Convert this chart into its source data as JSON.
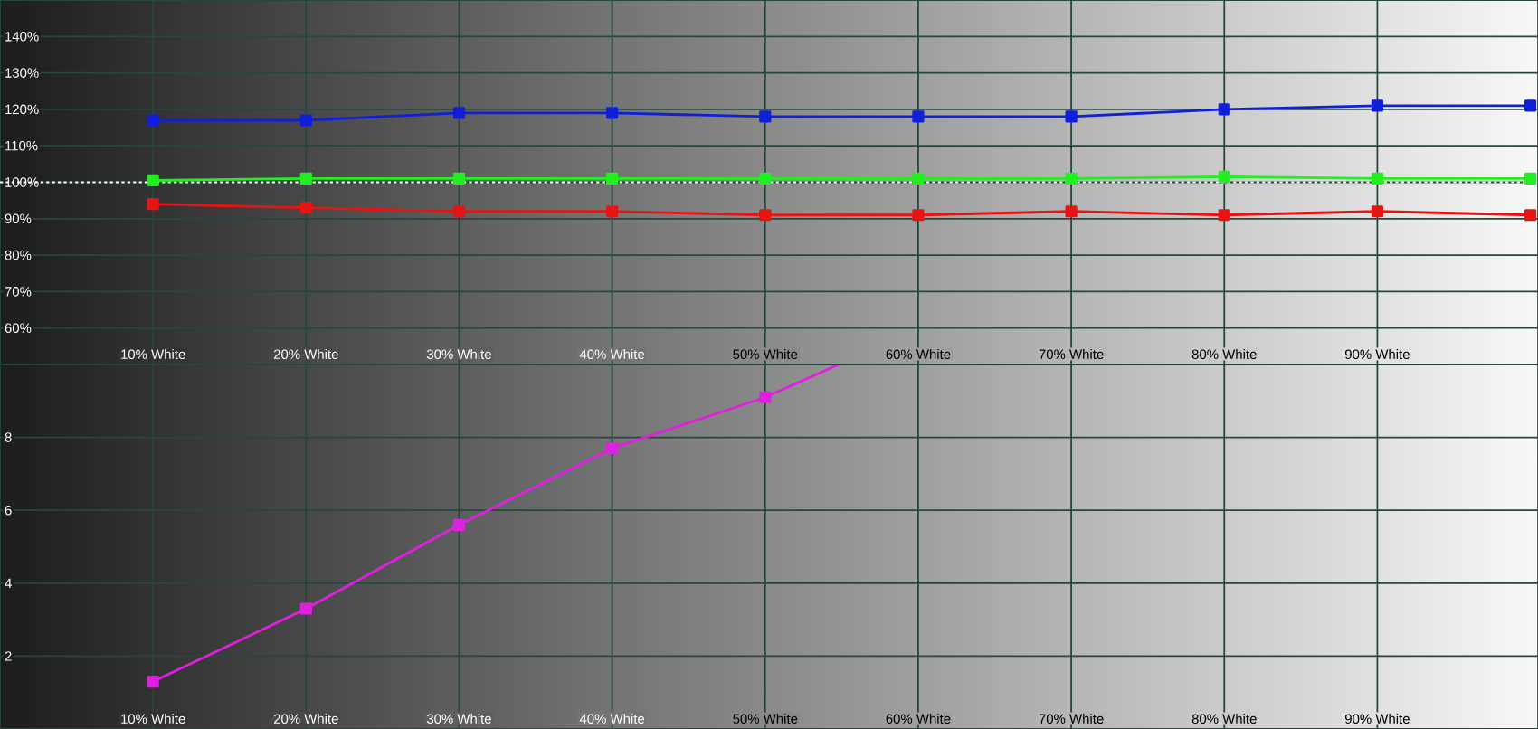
{
  "chart_data": [
    {
      "type": "line",
      "x": [
        10,
        20,
        30,
        40,
        50,
        60,
        70,
        80,
        90,
        100
      ],
      "xlim": [
        0,
        100.5
      ],
      "xticks": [
        {
          "value": 10,
          "label": "10% White"
        },
        {
          "value": 20,
          "label": "20% White"
        },
        {
          "value": 30,
          "label": "30% White"
        },
        {
          "value": 40,
          "label": "40% White"
        },
        {
          "value": 50,
          "label": "50% White"
        },
        {
          "value": 60,
          "label": "60% White"
        },
        {
          "value": 70,
          "label": "70% White"
        },
        {
          "value": 80,
          "label": "80% White"
        },
        {
          "value": 90,
          "label": "90% White"
        }
      ],
      "ylim": [
        50,
        150
      ],
      "yticks": [
        {
          "value": 60,
          "label": "60%"
        },
        {
          "value": 70,
          "label": "70%"
        },
        {
          "value": 80,
          "label": "80%"
        },
        {
          "value": 90,
          "label": "90%"
        },
        {
          "value": 100,
          "label": "100%"
        },
        {
          "value": 110,
          "label": "110%"
        },
        {
          "value": 120,
          "label": "120%"
        },
        {
          "value": 130,
          "label": "130%"
        },
        {
          "value": 140,
          "label": "140%"
        }
      ],
      "grid": true,
      "marker": "square",
      "ref_lines": [
        {
          "axis": "y",
          "value": 100,
          "color": "#ffffff",
          "line_style": "dotted"
        }
      ],
      "series": [
        {
          "color": "#e81414",
          "values": [
            94,
            93,
            92,
            92,
            91,
            91,
            92,
            91,
            92,
            91
          ]
        },
        {
          "color": "#22ee22",
          "values": [
            100.5,
            101,
            101,
            101,
            101,
            101,
            101,
            101.5,
            101,
            101
          ]
        },
        {
          "color": "#1020d8",
          "values": [
            117,
            117,
            119,
            119,
            118,
            118,
            118,
            120,
            121,
            121
          ]
        }
      ]
    },
    {
      "type": "line",
      "xlim": [
        0,
        100.5
      ],
      "xticks": [
        {
          "value": 10,
          "label": "10% White"
        },
        {
          "value": 20,
          "label": "20% White"
        },
        {
          "value": 30,
          "label": "30% White"
        },
        {
          "value": 40,
          "label": "40% White"
        },
        {
          "value": 50,
          "label": "50% White"
        },
        {
          "value": 60,
          "label": "60% White"
        },
        {
          "value": 70,
          "label": "70% White"
        },
        {
          "value": 80,
          "label": "80% White"
        },
        {
          "value": 90,
          "label": "90% White"
        }
      ],
      "ylim": [
        0,
        10
      ],
      "yticks": [
        2,
        4,
        6,
        8
      ],
      "grid": true,
      "marker": "square",
      "series": [
        {
          "color": "#e020e0",
          "x": [
            10,
            20,
            30,
            40,
            50,
            54.8
          ],
          "values": [
            1.3,
            3.3,
            5.6,
            7.7,
            9.1,
            10
          ]
        }
      ]
    }
  ]
}
